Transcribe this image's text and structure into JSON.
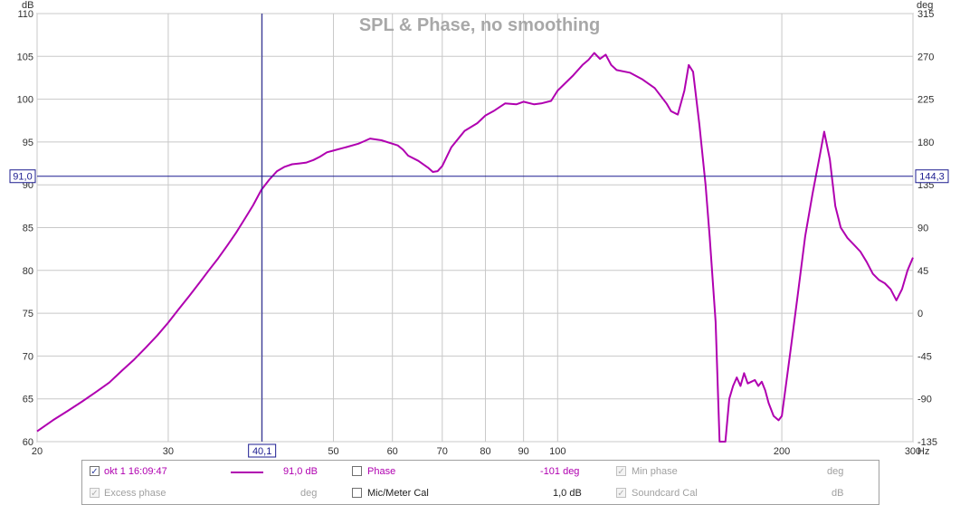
{
  "chart_data": {
    "type": "line",
    "title": "SPL & Phase, no smoothing",
    "left_axis_unit": "dB",
    "right_axis_unit": "deg",
    "x_unit": "Hz",
    "xscale": "log",
    "xlim": [
      20,
      300
    ],
    "ylim": [
      60,
      110
    ],
    "ylim_right": [
      -135,
      315
    ],
    "x_ticks": [
      "20",
      "30",
      "40",
      "50",
      "60",
      "70",
      "80",
      "90",
      "100",
      "200",
      "300"
    ],
    "y_ticks": [
      "60",
      "65",
      "70",
      "75",
      "80",
      "85",
      "90",
      "95",
      "100",
      "105",
      "110"
    ],
    "y_right_ticks": [
      "-135",
      "-90",
      "-45",
      "0",
      "45",
      "90",
      "135",
      "180",
      "225",
      "270",
      "315"
    ],
    "grid": true,
    "cursor": {
      "x": 40.1,
      "x_label": "40,1",
      "y": 91.0,
      "y_label": "91,0",
      "y_right_label": "144,3"
    },
    "series": [
      {
        "color": "#b000b0",
        "x": [
          20,
          21,
          22,
          23,
          24,
          25,
          26,
          27,
          28,
          29,
          30,
          31,
          32,
          33,
          34,
          35,
          36,
          37,
          38,
          39,
          40,
          41,
          42,
          43,
          44,
          45,
          46,
          47,
          48,
          49,
          50,
          52,
          54,
          55,
          56,
          58,
          60,
          61,
          62,
          63,
          65,
          67,
          68,
          69,
          70,
          72,
          75,
          78,
          80,
          82,
          85,
          88,
          90,
          93,
          95,
          98,
          100,
          105,
          108,
          110,
          112,
          114,
          116,
          118,
          120,
          125,
          130,
          135,
          140,
          142,
          145,
          148,
          150,
          152,
          155,
          158,
          160,
          163,
          165,
          168,
          170,
          172,
          174,
          176,
          178,
          180,
          182,
          184,
          186,
          188,
          190,
          192,
          195,
          198,
          200,
          205,
          210,
          215,
          220,
          225,
          228,
          232,
          236,
          240,
          245,
          250,
          255,
          260,
          265,
          270,
          275,
          280,
          285,
          290,
          295,
          300
        ],
        "values": [
          61.2,
          62.5,
          63.6,
          64.7,
          65.8,
          66.9,
          68.3,
          69.6,
          71.0,
          72.4,
          73.9,
          75.5,
          77.0,
          78.5,
          80.0,
          81.4,
          82.9,
          84.4,
          86.0,
          87.6,
          89.4,
          90.6,
          91.6,
          92.1,
          92.4,
          92.5,
          92.6,
          92.9,
          93.3,
          93.8,
          94.0,
          94.4,
          94.8,
          95.1,
          95.4,
          95.2,
          94.8,
          94.6,
          94.1,
          93.4,
          92.8,
          92.0,
          91.5,
          91.6,
          92.2,
          94.4,
          96.3,
          97.2,
          98.1,
          98.6,
          99.5,
          99.4,
          99.7,
          99.4,
          99.5,
          99.8,
          101.0,
          102.8,
          104.0,
          104.6,
          105.4,
          104.7,
          105.2,
          104.0,
          103.4,
          103.1,
          102.3,
          101.3,
          99.5,
          98.6,
          98.2,
          101.0,
          104.0,
          103.2,
          97.0,
          90.0,
          84.0,
          74.0,
          60.0,
          60.0,
          65.0,
          66.5,
          67.5,
          66.5,
          68.0,
          66.8,
          67.0,
          67.2,
          66.5,
          67.0,
          66.0,
          64.5,
          63.0,
          62.5,
          63.0,
          70.0,
          77.0,
          84.0,
          89.0,
          93.5,
          96.2,
          93.0,
          87.5,
          85.0,
          83.8,
          83.0,
          82.2,
          81.0,
          79.6,
          78.9,
          78.5,
          77.8,
          76.5,
          77.8,
          80.0,
          81.5
        ]
      }
    ]
  },
  "legend": {
    "row1": {
      "trace_checked": "✓",
      "trace_label": "okt 1 16:09:47",
      "trace_value": "91,0 dB",
      "phase_label": "Phase",
      "phase_value": "-101 deg",
      "minphase_checked": "✓",
      "minphase_label": "Min phase",
      "minphase_unit": "deg"
    },
    "row2": {
      "excess_checked": "✓",
      "excess_label": "Excess phase",
      "excess_unit": "deg",
      "micmeter_label": "Mic/Meter Cal",
      "micmeter_value": "1,0 dB",
      "soundcard_checked": "✓",
      "soundcard_label": "Soundcard Cal",
      "soundcard_unit": "dB"
    }
  }
}
